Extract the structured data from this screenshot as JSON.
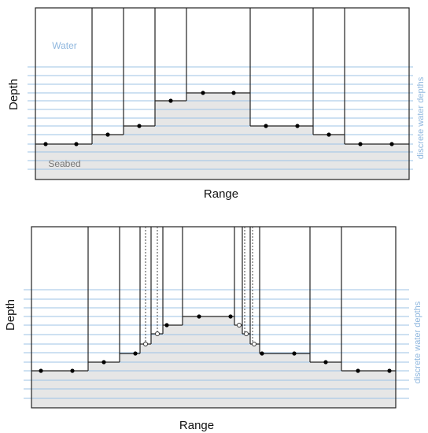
{
  "top_panel": {
    "water_label": "Water",
    "seabed_label": "Seabed",
    "y_axis_label": "Depth",
    "x_axis_label": "Range",
    "side_label": "discrete water depths"
  },
  "bottom_panel": {
    "y_axis_label": "Depth",
    "x_axis_label": "Range",
    "side_label": "discrete water depths"
  }
}
